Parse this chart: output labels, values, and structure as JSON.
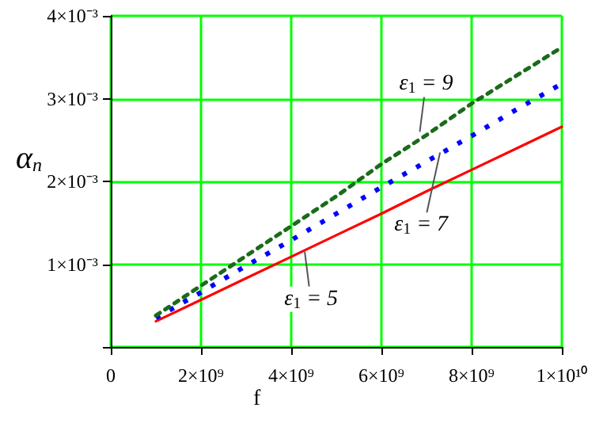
{
  "chart_data": {
    "type": "line",
    "xlabel": "f",
    "ylabel": "α$_{п}$",
    "x": [
      1000000000.0,
      2000000000.0,
      3000000000.0,
      4000000000.0,
      5000000000.0,
      6000000000.0,
      7000000000.0,
      8000000000.0,
      9000000000.0,
      10000000000.0
    ],
    "series": [
      {
        "color": "#ff0000",
        "line_style": "solid",
        "values": [
          0.00031,
          0.00057,
          0.00083,
          0.00109,
          0.00135,
          0.00161,
          0.00188,
          0.00214,
          0.0024,
          0.00266
        ]
      },
      {
        "color": "#0000ff",
        "line_style": "dotted",
        "values": [
          0.00035,
          0.00066,
          0.00098,
          0.00129,
          0.00161,
          0.00193,
          0.00224,
          0.00255,
          0.00287,
          0.00318
        ]
      },
      {
        "color": "#1a6b1a",
        "line_style": "dashed",
        "values": [
          0.00038,
          0.00074,
          0.0011,
          0.00146,
          0.00182,
          0.00221,
          0.00256,
          0.00294,
          0.00328,
          0.00362
        ]
      }
    ],
    "xlim": [
      0,
      10000000000.0
    ],
    "xticks": [
      0,
      {
        "value": 2000000000.0,
        "label": "2×10⁹"
      },
      {
        "value": 4000000000.0,
        "label": "4×10⁹"
      },
      {
        "value": 6000000000.0,
        "label": "6×10⁹"
      },
      {
        "value": 8000000000.0,
        "label": "8×10⁹"
      },
      {
        "value": 10000000000.0,
        "label": "1×10¹⁰"
      }
    ],
    "ylim": [
      0,
      0.004
    ],
    "yticks": [
      {
        "value": 0,
        "label": null
      },
      {
        "value": 0.001,
        "label": "1×10⁻³"
      },
      {
        "value": 0.002,
        "label": "2×10⁻³"
      },
      {
        "value": 0.003,
        "label": "3×10⁻³"
      },
      {
        "value": 0.004,
        "label": "4×10⁻³"
      }
    ],
    "annotations": [
      {
        "text": "ε$_{1}$ = 5",
        "x": 4300000000.0,
        "y": 0.00115
      },
      {
        "text": "ε$_{1}$ = 7",
        "x": 7300000000.0,
        "y": 0.00235
      },
      {
        "text": "ε$_{1}$ = 9",
        "x": 6850000000.0,
        "y": 0.0026
      }
    ],
    "grid": true,
    "marker": "none"
  }
}
